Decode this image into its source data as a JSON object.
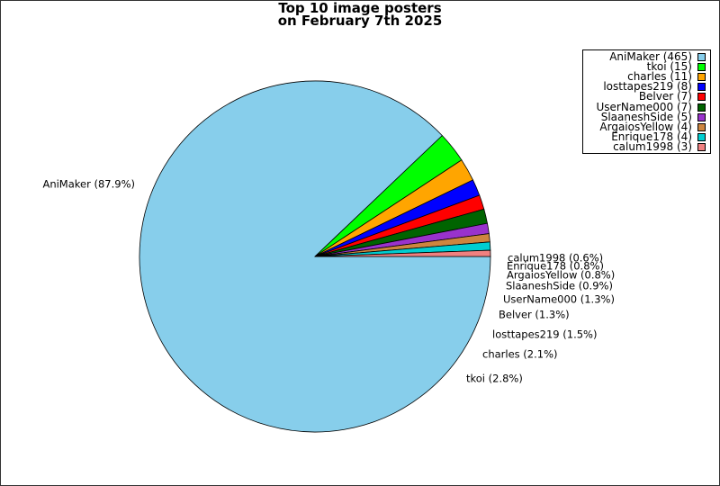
{
  "chart_data": {
    "type": "pie",
    "title_lines": [
      "Top 10 image posters",
      "on February 7th 2025"
    ],
    "categories": [
      "AniMaker",
      "tkoi",
      "charles",
      "losttapes219",
      "Belver",
      "UserName000",
      "SlaaneshSide",
      "ArgaiosYellow",
      "Enrique178",
      "calum1998"
    ],
    "values": [
      465,
      15,
      11,
      8,
      7,
      7,
      5,
      4,
      4,
      3
    ],
    "colors": [
      "#87ceeb",
      "#00ff00",
      "#ffa500",
      "#0000ff",
      "#ff0000",
      "#006400",
      "#9932cc",
      "#cd853f",
      "#00ced1",
      "#f08080"
    ],
    "slice_labels": [
      "AniMaker (87.9%)",
      "tkoi (2.8%)",
      "charles (2.1%)",
      "losttapes219 (1.5%)",
      "Belver (1.3%)",
      "UserName000 (1.3%)",
      "SlaaneshSide (0.9%)",
      "ArgaiosYellow (0.8%)",
      "Enrique178 (0.8%)",
      "calum1998 (0.6%)"
    ],
    "legend_entries": [
      "AniMaker (465)",
      "tkoi (15)",
      "charles (11)",
      "losttapes219 (8)",
      "Belver (7)",
      "UserName000 (7)",
      "SlaaneshSide (5)",
      "ArgaiosYellow (4)",
      "Enrique178 (4)",
      "calum1998 (3)"
    ],
    "legend_position": "top-right",
    "start_angle_deg": 0,
    "direction": "clockwise"
  }
}
